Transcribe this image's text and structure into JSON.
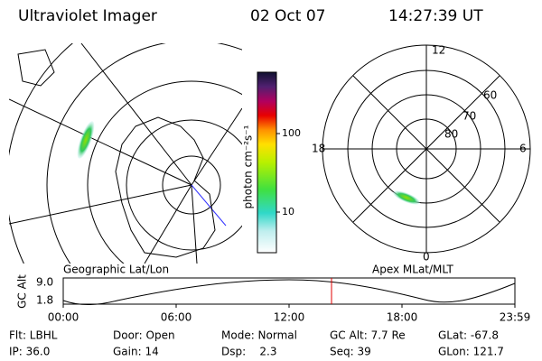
{
  "header": {
    "instrument": "Ultraviolet Imager",
    "date": "02 Oct 07",
    "time": "14:27:39 UT"
  },
  "left_map": {
    "caption": "Geographic Lat/Lon"
  },
  "colorbar": {
    "label": "photon cm⁻²s⁻¹",
    "ticks": [
      "100",
      "10"
    ]
  },
  "right_map": {
    "caption": "Apex MLat/MLT",
    "mlt_labels": [
      "12",
      "6",
      "0",
      "18"
    ],
    "mlat_labels": [
      "60",
      "70",
      "80"
    ]
  },
  "timeline": {
    "ylabel": "GC Alt",
    "yticks": [
      "9.0",
      "1.8"
    ],
    "xticks": [
      "00:00",
      "06:00",
      "12:00",
      "18:00",
      "23:59"
    ]
  },
  "footer": {
    "rows": [
      [
        "Flt: LBHL",
        "Door: Open",
        "Mode: Normal",
        "GC Alt: 7.7 Re",
        "GLat: -67.8"
      ],
      [
        "IP: 36.0",
        "Gain: 14",
        "Dsp:    2.3",
        "Seq: 39",
        "GLon: 121.7"
      ]
    ]
  }
}
